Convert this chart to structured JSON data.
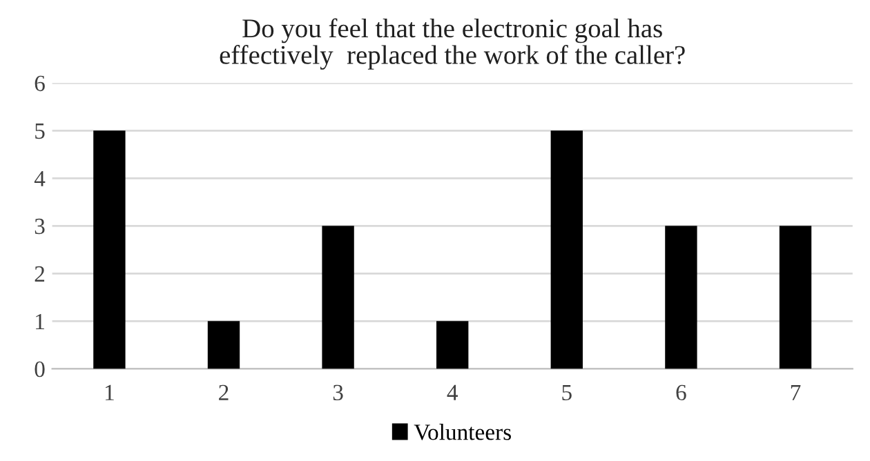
{
  "chart_data": {
    "type": "bar",
    "title": "Do you feel that the electronic goal has\neffectively  replaced the work of the caller?",
    "categories": [
      "1",
      "2",
      "3",
      "4",
      "5",
      "6",
      "7"
    ],
    "series": [
      {
        "name": "Volunteers",
        "color": "#000000",
        "values": [
          5,
          1,
          3,
          1,
          5,
          3,
          3
        ]
      }
    ],
    "ylim": [
      0,
      6
    ],
    "yticks": [
      0,
      1,
      2,
      3,
      4,
      5,
      6
    ],
    "grid": "y",
    "legend": "bottom"
  }
}
